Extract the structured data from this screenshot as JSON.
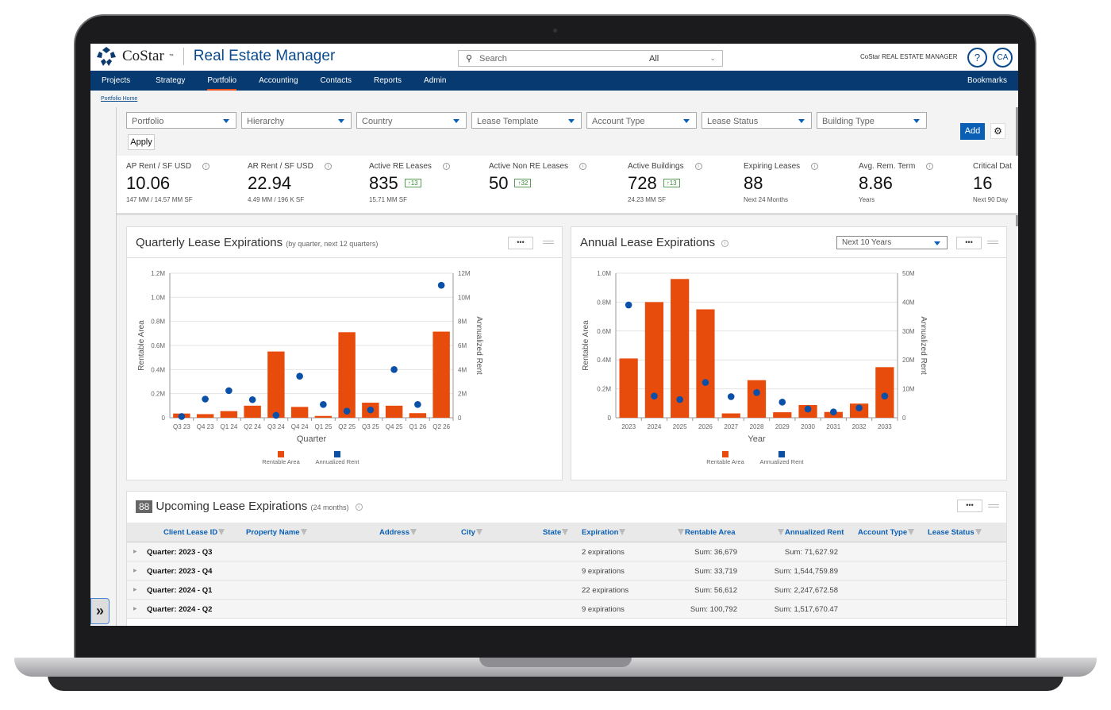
{
  "header": {
    "brand": "CoStar",
    "brand_tm": "™",
    "app_name": "Real Estate Manager",
    "search_placeholder": "Search",
    "search_scope": "All",
    "mini_logo": "CoStar REAL ESTATE MANAGER",
    "help": "?",
    "avatar": "CA"
  },
  "nav": {
    "items": [
      "Projects",
      "Strategy",
      "Portfolio",
      "Accounting",
      "Contacts",
      "Reports",
      "Admin"
    ],
    "active": "Portfolio",
    "bookmarks": "Bookmarks"
  },
  "breadcrumb": "Portfolio Home",
  "filters": [
    "Portfolio",
    "Hierarchy",
    "Country",
    "Lease Template",
    "Account Type",
    "Lease Status",
    "Building Type"
  ],
  "buttons": {
    "apply": "Apply",
    "add": "Add"
  },
  "kpis": [
    {
      "label": "AP Rent / SF USD",
      "value": "10.06",
      "badge": "",
      "sub": "147 MM / 14.57 MM SF"
    },
    {
      "label": "AR Rent / SF USD",
      "value": "22.94",
      "badge": "",
      "sub": "4.49 MM / 196 K SF"
    },
    {
      "label": "Active RE Leases",
      "value": "835",
      "badge": "↑13",
      "sub": "15.71 MM SF"
    },
    {
      "label": "Active Non RE Leases",
      "value": "50",
      "badge": "↑32",
      "sub": ""
    },
    {
      "label": "Active Buildings",
      "value": "728",
      "badge": "↑13",
      "sub": "24.23 MM SF"
    },
    {
      "label": "Expiring Leases",
      "value": "88",
      "badge": "",
      "sub": "Next 24 Months"
    },
    {
      "label": "Avg. Rem. Term",
      "value": "8.86",
      "badge": "",
      "sub": "Years"
    },
    {
      "label": "Critical Dat",
      "value": "16",
      "badge": "",
      "sub": "Next 90 Day"
    }
  ],
  "quarterly": {
    "title": "Quarterly Lease Expirations",
    "subtitle": "(by quarter, next 12 quarters)",
    "more": "•••"
  },
  "annual": {
    "title": "Annual Lease Expirations",
    "range": "Next 10 Years",
    "more": "•••"
  },
  "chart_data": [
    {
      "type": "bar+scatter",
      "xlabel": "Quarter",
      "ylabel": "Rentable Area",
      "y2label": "Annualized Rent",
      "categories": [
        "Q3 23",
        "Q4 23",
        "Q1 24",
        "Q2 24",
        "Q3 24",
        "Q4 24",
        "Q1 25",
        "Q2 25",
        "Q3 25",
        "Q4 25",
        "Q1 26",
        "Q2 26"
      ],
      "ylim": [
        0,
        1200000
      ],
      "y2lim": [
        0,
        12000000
      ],
      "yticks": [
        "0",
        "0.2M",
        "0.4M",
        "0.6M",
        "0.8M",
        "1.0M",
        "1.2M"
      ],
      "y2ticks": [
        "0",
        "2M",
        "4M",
        "6M",
        "8M",
        "10M",
        "12M"
      ],
      "grid": true,
      "legend": "bottom",
      "series": [
        {
          "name": "Rentable Area",
          "type": "bar",
          "color": "#e84c0c",
          "values": [
            35000,
            30000,
            55000,
            100000,
            550000,
            90000,
            15000,
            710000,
            125000,
            100000,
            38000,
            715000
          ]
        },
        {
          "name": "Annualized Rent",
          "type": "scatter",
          "color": "#0a4fa8",
          "values": [
            100000,
            1550000,
            2250000,
            1500000,
            200000,
            3450000,
            1100000,
            550000,
            650000,
            4000000,
            1100000,
            11000000
          ]
        }
      ]
    },
    {
      "type": "bar+scatter",
      "xlabel": "Year",
      "ylabel": "Rentable Area",
      "y2label": "Annualized Rent",
      "categories": [
        "2023",
        "2024",
        "2025",
        "2026",
        "2027",
        "2028",
        "2029",
        "2030",
        "2031",
        "2032",
        "2033"
      ],
      "ylim": [
        0,
        1000000
      ],
      "y2lim": [
        0,
        50000000
      ],
      "yticks": [
        "0",
        "0.2M",
        "0.4M",
        "0.6M",
        "0.8M",
        "1.0M"
      ],
      "y2ticks": [
        "0",
        "10M",
        "20M",
        "30M",
        "40M",
        "50M"
      ],
      "grid": true,
      "legend": "bottom",
      "series": [
        {
          "name": "Rentable Area",
          "type": "bar",
          "color": "#e84c0c",
          "values": [
            410000,
            800000,
            960000,
            750000,
            30000,
            260000,
            38000,
            88000,
            40000,
            98000,
            350000
          ]
        },
        {
          "name": "Annualized Rent",
          "type": "scatter",
          "color": "#0a4fa8",
          "values": [
            39000000,
            7500000,
            6300000,
            12200000,
            7300000,
            8700000,
            5400000,
            3000000,
            2000000,
            3400000,
            7500000
          ]
        }
      ]
    }
  ],
  "table": {
    "count": "88",
    "title": "Upcoming Lease Expirations",
    "subtitle": "(24 months)",
    "more": "•••",
    "columns": [
      "Client Lease ID",
      "Property Name",
      "Address",
      "City",
      "State",
      "Expiration",
      "Rentable Area",
      "Annualized Rent",
      "Account Type",
      "Lease Status"
    ],
    "rows": [
      {
        "group": "Quarter: 2023 - Q3",
        "count": "2 expirations",
        "area": "Sum: 36,679",
        "rent": "Sum: 71,627.92"
      },
      {
        "group": "Quarter: 2023 - Q4",
        "count": "9 expirations",
        "area": "Sum: 33,719",
        "rent": "Sum: 1,544,759.89"
      },
      {
        "group": "Quarter: 2024 - Q1",
        "count": "22 expirations",
        "area": "Sum: 56,612",
        "rent": "Sum: 2,247,672.58"
      },
      {
        "group": "Quarter: 2024 - Q2",
        "count": "9 expirations",
        "area": "Sum: 100,792",
        "rent": "Sum: 1,517,670.47"
      }
    ]
  }
}
